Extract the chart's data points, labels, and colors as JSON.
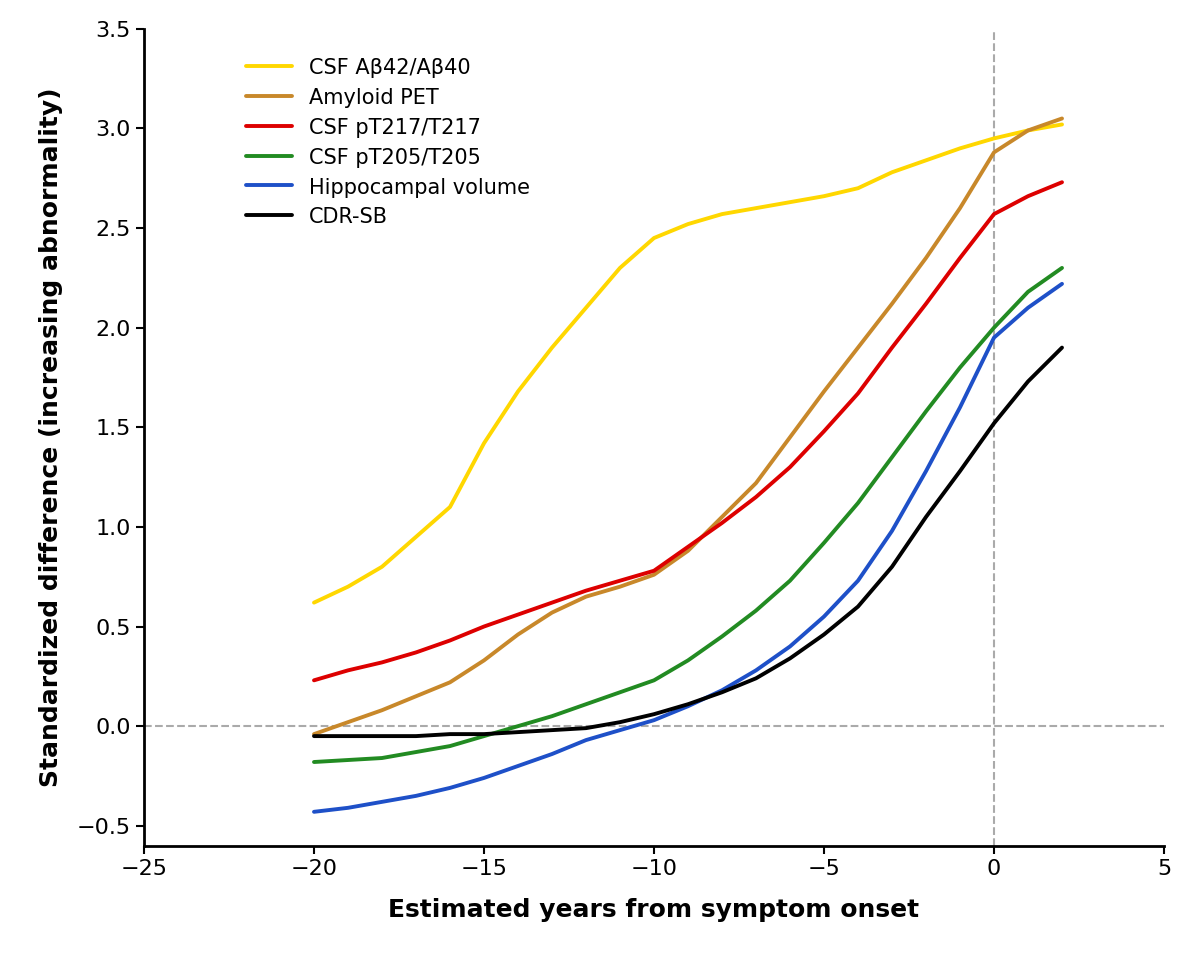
{
  "xlabel": "Estimated years from symptom onset",
  "ylabel": "Standardized difference (increasing abnormality)",
  "xlim": [
    -25,
    5
  ],
  "ylim": [
    -0.6,
    3.5
  ],
  "xticks": [
    -25,
    -20,
    -15,
    -10,
    -5,
    0,
    5
  ],
  "yticks": [
    -0.5,
    0.0,
    0.5,
    1.0,
    1.5,
    2.0,
    2.5,
    3.0,
    3.5
  ],
  "background_color": "#ffffff",
  "series": [
    {
      "label": "CSF Aβ42/Aβ40",
      "color": "#FFD700",
      "linewidth": 2.8,
      "x": [
        -20,
        -19,
        -18,
        -17,
        -16,
        -15,
        -14,
        -13,
        -12,
        -11,
        -10,
        -9,
        -8,
        -7,
        -6,
        -5,
        -4,
        -3,
        -2,
        -1,
        0,
        1,
        2
      ],
      "y": [
        0.62,
        0.7,
        0.8,
        0.95,
        1.1,
        1.42,
        1.68,
        1.9,
        2.1,
        2.3,
        2.45,
        2.52,
        2.57,
        2.6,
        2.63,
        2.66,
        2.7,
        2.78,
        2.84,
        2.9,
        2.95,
        2.99,
        3.02
      ]
    },
    {
      "label": "Amyloid PET",
      "color": "#C8882A",
      "linewidth": 2.8,
      "x": [
        -20,
        -19,
        -18,
        -17,
        -16,
        -15,
        -14,
        -13,
        -12,
        -11,
        -10,
        -9,
        -8,
        -7,
        -6,
        -5,
        -4,
        -3,
        -2,
        -1,
        0,
        1,
        2
      ],
      "y": [
        -0.04,
        0.02,
        0.08,
        0.15,
        0.22,
        0.33,
        0.46,
        0.57,
        0.65,
        0.7,
        0.76,
        0.88,
        1.05,
        1.22,
        1.45,
        1.68,
        1.9,
        2.12,
        2.35,
        2.6,
        2.88,
        2.99,
        3.05
      ]
    },
    {
      "label": "CSF pT217/T217",
      "color": "#DD0000",
      "linewidth": 2.8,
      "x": [
        -20,
        -19,
        -18,
        -17,
        -16,
        -15,
        -14,
        -13,
        -12,
        -11,
        -10,
        -9,
        -8,
        -7,
        -6,
        -5,
        -4,
        -3,
        -2,
        -1,
        0,
        1,
        2
      ],
      "y": [
        0.23,
        0.28,
        0.32,
        0.37,
        0.43,
        0.5,
        0.56,
        0.62,
        0.68,
        0.73,
        0.78,
        0.9,
        1.02,
        1.15,
        1.3,
        1.48,
        1.67,
        1.9,
        2.12,
        2.35,
        2.57,
        2.66,
        2.73
      ]
    },
    {
      "label": "CSF pT205/T205",
      "color": "#228B22",
      "linewidth": 2.8,
      "x": [
        -20,
        -19,
        -18,
        -17,
        -16,
        -15,
        -14,
        -13,
        -12,
        -11,
        -10,
        -9,
        -8,
        -7,
        -6,
        -5,
        -4,
        -3,
        -2,
        -1,
        0,
        1,
        2
      ],
      "y": [
        -0.18,
        -0.17,
        -0.16,
        -0.13,
        -0.1,
        -0.05,
        0.0,
        0.05,
        0.11,
        0.17,
        0.23,
        0.33,
        0.45,
        0.58,
        0.73,
        0.92,
        1.12,
        1.35,
        1.58,
        1.8,
        2.0,
        2.18,
        2.3
      ]
    },
    {
      "label": "Hippocampal volume",
      "color": "#1E50C8",
      "linewidth": 2.8,
      "x": [
        -20,
        -19,
        -18,
        -17,
        -16,
        -15,
        -14,
        -13,
        -12,
        -11,
        -10,
        -9,
        -8,
        -7,
        -6,
        -5,
        -4,
        -3,
        -2,
        -1,
        0,
        1,
        2
      ],
      "y": [
        -0.43,
        -0.41,
        -0.38,
        -0.35,
        -0.31,
        -0.26,
        -0.2,
        -0.14,
        -0.07,
        -0.02,
        0.03,
        0.1,
        0.18,
        0.28,
        0.4,
        0.55,
        0.73,
        0.98,
        1.28,
        1.6,
        1.95,
        2.1,
        2.22
      ]
    },
    {
      "label": "CDR-SB",
      "color": "#000000",
      "linewidth": 2.8,
      "x": [
        -20,
        -19,
        -18,
        -17,
        -16,
        -15,
        -14,
        -13,
        -12,
        -11,
        -10,
        -9,
        -8,
        -7,
        -6,
        -5,
        -4,
        -3,
        -2,
        -1,
        0,
        1,
        2
      ],
      "y": [
        -0.05,
        -0.05,
        -0.05,
        -0.05,
        -0.04,
        -0.04,
        -0.03,
        -0.02,
        -0.01,
        0.02,
        0.06,
        0.11,
        0.17,
        0.24,
        0.34,
        0.46,
        0.6,
        0.8,
        1.05,
        1.28,
        1.52,
        1.73,
        1.9
      ]
    }
  ],
  "legend_fontsize": 15,
  "tick_fontsize": 16,
  "axis_label_fontsize": 18
}
